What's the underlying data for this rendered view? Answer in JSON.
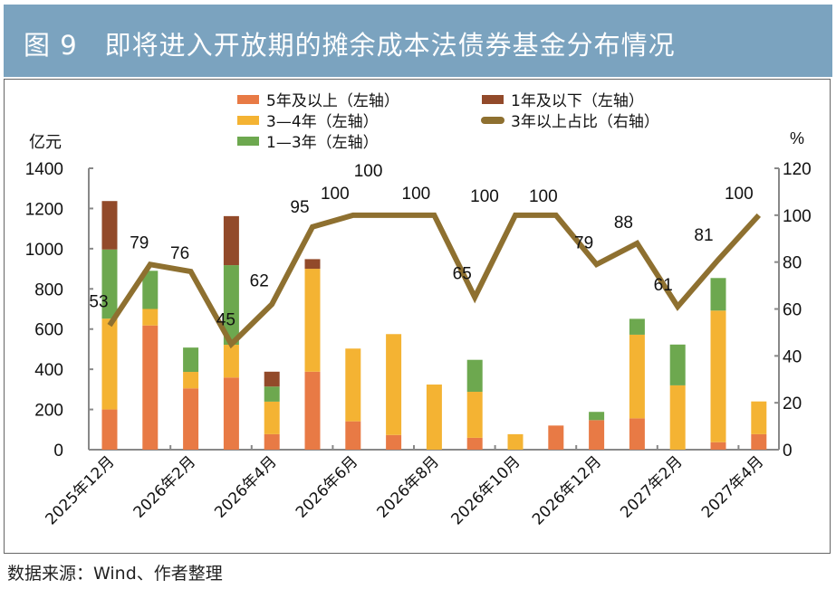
{
  "title": "图 9　即将进入开放期的摊余成本法债券基金分布情况",
  "source": "数据来源：Wind、作者整理",
  "chart_data": {
    "type": "bar+line",
    "title": "图 9　即将进入开放期的摊余成本法债券基金分布情况",
    "y_left_unit": "亿元",
    "y_right_unit": "%",
    "y_left_lim": [
      0,
      1400
    ],
    "y_left_ticks": [
      0,
      200,
      400,
      600,
      800,
      1000,
      1200,
      1400
    ],
    "y_right_lim": [
      0,
      120
    ],
    "y_right_ticks": [
      0,
      20,
      40,
      60,
      80,
      100,
      120
    ],
    "stacked": true,
    "grid": false,
    "legend_position": "top",
    "categories": [
      "2025年12月",
      "2026年1月",
      "2026年2月",
      "2026年3月",
      "2026年4月",
      "2026年5月",
      "2026年6月",
      "2026年7月",
      "2026年8月",
      "2026年9月",
      "2026年10月",
      "2026年11月",
      "2026年12月",
      "2027年1月",
      "2027年2月",
      "2027年3月",
      "2027年4月"
    ],
    "x_tick_labels": [
      "2025年12月",
      "2026年2月",
      "2026年4月",
      "2026年6月",
      "2026年8月",
      "2026年10月",
      "2026年12月",
      "2027年2月",
      "2027年4月"
    ],
    "series": [
      {
        "name": "5年及以上（左轴）",
        "axis": "left",
        "color": "#E87A45",
        "values": [
          200,
          618,
          305,
          359,
          77,
          388,
          141,
          73,
          0,
          59,
          0,
          120,
          147,
          156,
          0,
          37,
          77
        ]
      },
      {
        "name": "3—4年（左轴）",
        "axis": "left",
        "color": "#F4B333",
        "values": [
          452,
          82,
          82,
          163,
          162,
          512,
          362,
          502,
          324,
          229,
          77,
          0,
          0,
          416,
          320,
          655,
          163
        ]
      },
      {
        "name": "1—3年（左轴）",
        "axis": "left",
        "color": "#6DA84F",
        "values": [
          344,
          190,
          121,
          396,
          75,
          0,
          0,
          0,
          0,
          159,
          0,
          0,
          41,
          79,
          203,
          162,
          0
        ]
      },
      {
        "name": "1年及以下（左轴）",
        "axis": "left",
        "color": "#924A2A",
        "values": [
          241,
          0,
          0,
          244,
          74,
          48,
          0,
          0,
          0,
          0,
          0,
          0,
          0,
          0,
          0,
          0,
          0
        ]
      },
      {
        "name": "3年以上占比（右轴）",
        "axis": "right",
        "type": "line",
        "color": "#8E7030",
        "values": [
          53,
          79,
          76,
          45,
          62,
          95,
          100,
          100,
          100,
          65,
          100,
          100,
          79,
          88,
          61,
          81,
          100
        ],
        "data_labels": [
          "53",
          "79",
          "76",
          "45",
          "62",
          "95",
          "100",
          "100",
          "100",
          "65",
          "100",
          "100",
          "79",
          "88",
          "61",
          "81",
          "100"
        ]
      }
    ]
  }
}
